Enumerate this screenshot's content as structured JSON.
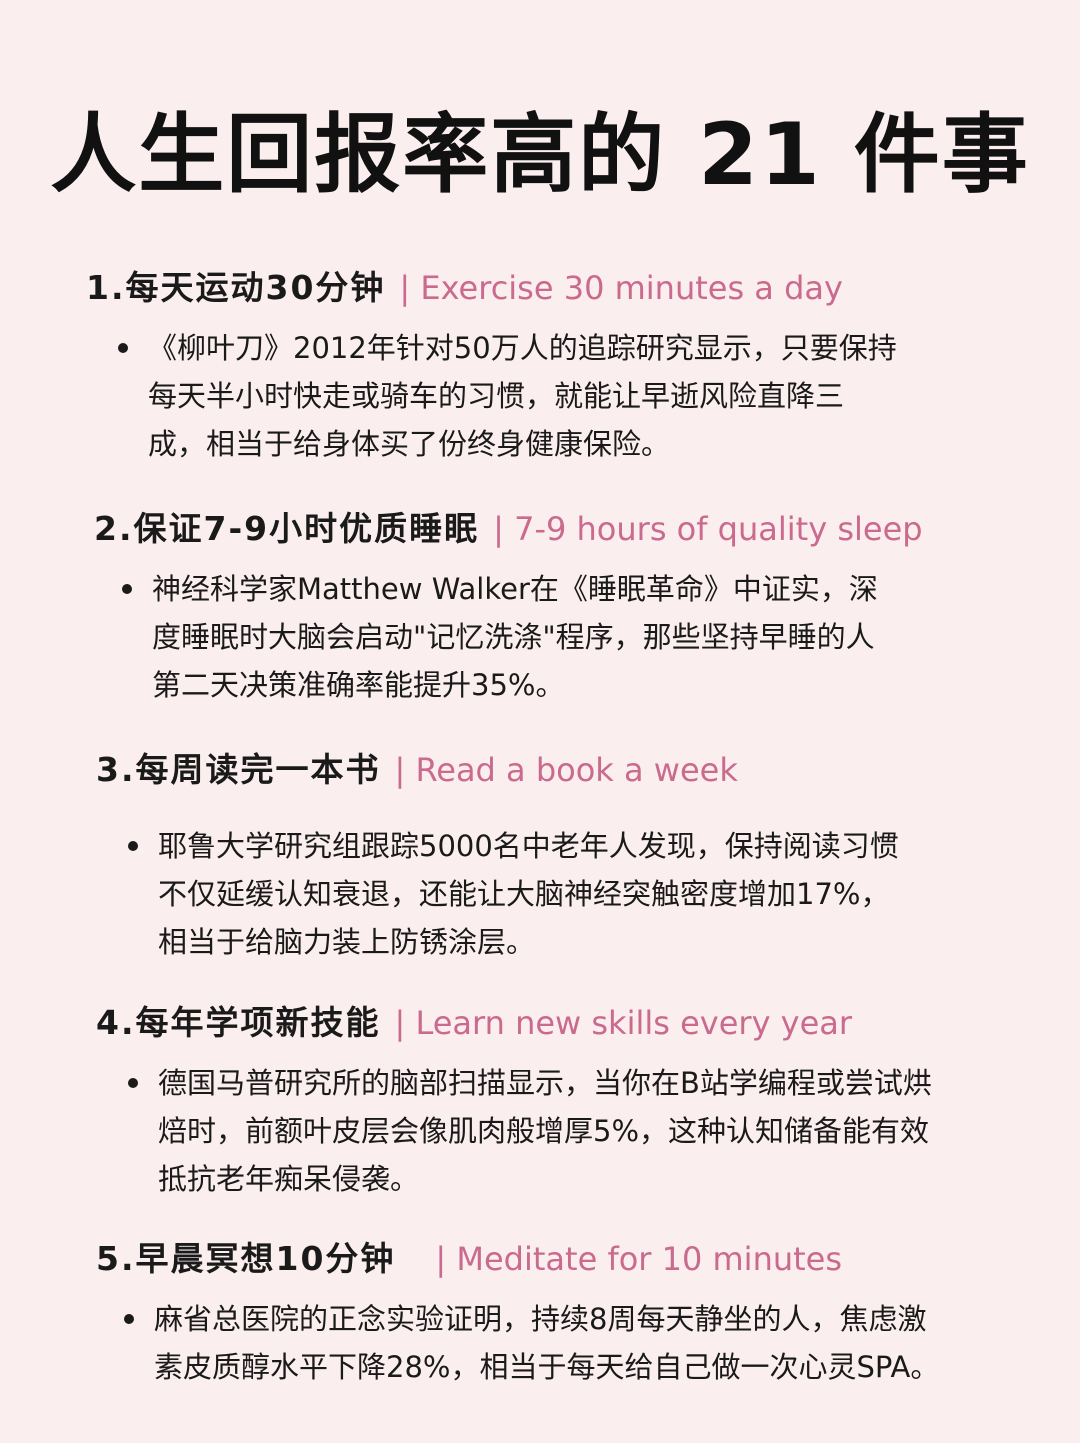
{
  "title": "人生回报率高的 21 件事",
  "sections": [
    {
      "heading_zh": "1.每天运动30分钟",
      "heading_en": "| Exercise 30 minutes a day",
      "body_lines": [
        "《柳叶刀》2012年针对50万人的追踪研究显示，只要保持",
        "每天半小时快走或骑车的习惯，就能让早逝风险直降三",
        "成，相当于给身体买了份终身健康保险。"
      ]
    },
    {
      "heading_zh": "2.保证7-9小时优质睡眠",
      "heading_en": "| 7-9 hours of quality sleep",
      "body_lines": [
        "神经科学家Matthew Walker在《睡眠革命》中证实，深",
        "度睡眠时大脑会启动\"记忆洗涤\"程序，那些坚持早睡的人",
        "第二天决策准确率能提升35%。"
      ]
    },
    {
      "heading_zh": "3.每周读完一本书",
      "heading_en": "| Read a book a week",
      "body_lines": [
        "耶鲁大学研究组跟踪5000名中老年人发现，保持阅读习惯",
        "不仅延缓认知衰退，还能让大脑神经突触密度增加17%，",
        "相当于给脑力装上防锈涂层。"
      ]
    },
    {
      "heading_zh": "4.每年学项新技能",
      "heading_en": "| Learn new skills every year",
      "body_lines": [
        "德国马普研究所的脑部扫描显示，当你在B站学编程或尝试烘",
        "焙时，前额叶皮层会像肌肉般增厚5%，这种认知储备能有效",
        "抵抗老年痴呆侵袭。"
      ]
    },
    {
      "heading_zh": "5.早晨冥想10分钟",
      "heading_en": "| Meditate for 10 minutes",
      "body_lines": [
        "麻省总医院的正念实验证明，持续8周每天静坐的人，焦虑激",
        "素皮质醇水平下降28%，相当于每天给自己做一次心灵SPA。"
      ]
    }
  ]
}
